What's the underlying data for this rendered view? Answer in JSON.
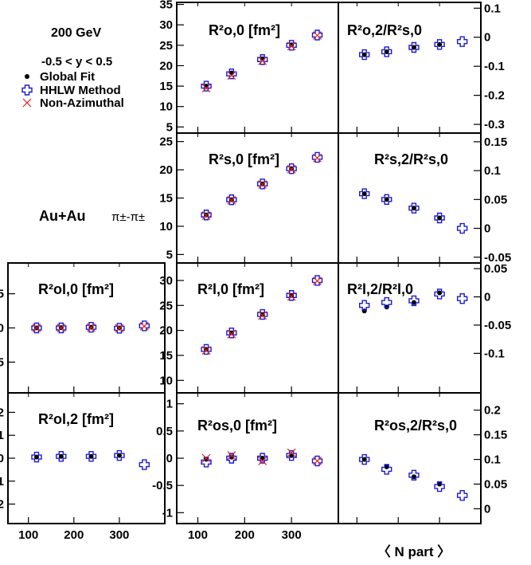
{
  "texts": {
    "energy": "200 GeV",
    "rapidity": "-0.5 < y < 0.5",
    "system": "Au+Au",
    "pair": "π±-π±",
    "x_axis_label": "〈 N part 〉"
  },
  "legend": [
    {
      "name": "Global Fit",
      "marker": "dot",
      "color": "#000000"
    },
    {
      "name": "HHLW Method",
      "marker": "open-cross",
      "color": "#1a1ad6"
    },
    {
      "name": "Non-Azimuthal",
      "marker": "x",
      "color": "#e02020"
    }
  ],
  "chart_data": [
    {
      "type": "scatter",
      "panel": "R_o0",
      "label": "R²o,0 [fm²]",
      "x": [
        118,
        172,
        238,
        300,
        355
      ],
      "xlim": [
        55,
        400
      ],
      "ylim": [
        3.5,
        35.5
      ],
      "yticks": [
        5,
        10,
        15,
        20,
        25,
        30,
        35
      ],
      "series": [
        {
          "name": "Global Fit",
          "values": [
            15.0,
            18.2,
            21.7,
            25.1,
            null
          ]
        },
        {
          "name": "HHLW Method",
          "values": [
            15.0,
            18.0,
            21.5,
            25.0,
            27.5
          ]
        },
        {
          "name": "Non-Azimuthal",
          "values": [
            14.5,
            17.6,
            21.2,
            24.8,
            27.4
          ]
        }
      ]
    },
    {
      "type": "scatter",
      "panel": "R_o2_ratio",
      "label": "R²o,2/R²s,0",
      "x": [
        118,
        172,
        238,
        300,
        355
      ],
      "xlim": [
        55,
        400
      ],
      "ylim": [
        -0.33,
        0.12
      ],
      "yticks": [
        0.1,
        0,
        -0.1,
        -0.2,
        -0.3
      ],
      "series": [
        {
          "name": "Global Fit",
          "values": [
            -0.06,
            -0.05,
            -0.035,
            -0.025,
            null
          ]
        },
        {
          "name": "HHLW Method",
          "values": [
            -0.06,
            -0.05,
            -0.035,
            -0.025,
            -0.015
          ]
        }
      ]
    },
    {
      "type": "scatter",
      "panel": "R_s0",
      "label": "R²s,0 [fm²]",
      "x": [
        118,
        172,
        238,
        300,
        355
      ],
      "xlim": [
        55,
        400
      ],
      "ylim": [
        3.5,
        26.5
      ],
      "yticks": [
        5,
        10,
        15,
        20,
        25
      ],
      "series": [
        {
          "name": "Global Fit",
          "values": [
            12.0,
            14.7,
            17.5,
            20.2,
            null
          ]
        },
        {
          "name": "HHLW Method",
          "values": [
            12.0,
            14.7,
            17.5,
            20.2,
            22.2
          ]
        },
        {
          "name": "Non-Azimuthal",
          "values": [
            11.9,
            14.6,
            17.4,
            20.1,
            22.1
          ]
        }
      ]
    },
    {
      "type": "scatter",
      "panel": "R_s2_ratio",
      "label": "R²s,2/R²s,0",
      "x": [
        118,
        172,
        238,
        300,
        355
      ],
      "xlim": [
        55,
        400
      ],
      "ylim": [
        -0.06,
        0.165
      ],
      "yticks": [
        0.15,
        0.1,
        0.05,
        0,
        -0.05
      ],
      "series": [
        {
          "name": "Global Fit",
          "values": [
            0.06,
            0.05,
            0.035,
            0.018,
            null
          ]
        },
        {
          "name": "HHLW Method",
          "values": [
            0.06,
            0.05,
            0.035,
            0.018,
            0.0
          ]
        }
      ]
    },
    {
      "type": "scatter",
      "panel": "R_ol0",
      "label": "R²ol,0 [fm²]",
      "x": [
        118,
        172,
        238,
        300,
        355
      ],
      "xlim": [
        55,
        400
      ],
      "ylim": [
        -9.5,
        9.5
      ],
      "yticks": [
        5,
        0,
        -5
      ],
      "series": [
        {
          "name": "Global Fit",
          "values": [
            0.0,
            0.05,
            0.1,
            0.0,
            null
          ]
        },
        {
          "name": "HHLW Method",
          "values": [
            0.0,
            0.0,
            0.1,
            -0.05,
            0.3
          ]
        },
        {
          "name": "Non-Azimuthal",
          "values": [
            0.0,
            0.0,
            0.05,
            -0.05,
            0.25
          ]
        }
      ]
    },
    {
      "type": "scatter",
      "panel": "R_l0",
      "label": "R²l,0 [fm²]",
      "x": [
        118,
        172,
        238,
        300,
        355
      ],
      "xlim": [
        55,
        400
      ],
      "ylim": [
        7.5,
        33.5
      ],
      "yticks": [
        10,
        15,
        20,
        25,
        30
      ],
      "series": [
        {
          "name": "Global Fit",
          "values": [
            16.2,
            19.5,
            23.2,
            27.0,
            null
          ]
        },
        {
          "name": "HHLW Method",
          "values": [
            16.2,
            19.5,
            23.2,
            27.0,
            30.0
          ]
        },
        {
          "name": "Non-Azimuthal",
          "values": [
            16.0,
            19.3,
            23.0,
            26.8,
            29.9
          ]
        }
      ]
    },
    {
      "type": "scatter",
      "panel": "R_l2_ratio",
      "label": "R²l,2/R²l,0",
      "x": [
        118,
        172,
        238,
        300,
        355
      ],
      "xlim": [
        55,
        400
      ],
      "ylim": [
        -0.17,
        0.06
      ],
      "yticks": [
        0.05,
        0,
        -0.05,
        -0.1
      ],
      "series": [
        {
          "name": "Global Fit",
          "values": [
            -0.025,
            -0.018,
            -0.01,
            0.007,
            null
          ]
        },
        {
          "name": "HHLW Method",
          "values": [
            -0.015,
            -0.01,
            -0.007,
            0.005,
            -0.003
          ]
        }
      ]
    },
    {
      "type": "scatter",
      "panel": "R_ol2",
      "label": "R²ol,2 [fm²]",
      "x": [
        118,
        172,
        238,
        300,
        355
      ],
      "xlim": [
        55,
        400
      ],
      "ylim": [
        -2.85,
        2.85
      ],
      "yticks": [
        2,
        1,
        0,
        -1,
        -2
      ],
      "series": [
        {
          "name": "Global Fit",
          "values": [
            0.05,
            0.08,
            0.08,
            0.12,
            null
          ]
        },
        {
          "name": "HHLW Method",
          "values": [
            0.05,
            0.08,
            0.08,
            0.12,
            -0.28
          ]
        }
      ]
    },
    {
      "type": "scatter",
      "panel": "R_os0",
      "label": "R²os,0 [fm²]",
      "x": [
        118,
        172,
        238,
        300,
        355
      ],
      "xlim": [
        55,
        400
      ],
      "ylim": [
        -1.2,
        1.2
      ],
      "yticks": [
        1,
        0.5,
        0,
        -0.5,
        -1
      ],
      "series": [
        {
          "name": "Global Fit",
          "values": [
            -0.02,
            0.02,
            0.0,
            0.05,
            null
          ]
        },
        {
          "name": "HHLW Method",
          "values": [
            -0.07,
            0.0,
            0.0,
            0.05,
            -0.05
          ]
        },
        {
          "name": "Non-Azimuthal",
          "values": [
            0.0,
            0.05,
            -0.05,
            0.1,
            -0.05
          ]
        }
      ]
    },
    {
      "type": "scatter",
      "panel": "R_os2_ratio",
      "label": "R²os,2/R²s,0",
      "x": [
        118,
        172,
        238,
        300,
        355
      ],
      "xlim": [
        55,
        400
      ],
      "ylim": [
        -0.03,
        0.235
      ],
      "yticks": [
        0.2,
        0.15,
        0.1,
        0.05,
        0
      ],
      "series": [
        {
          "name": "Global Fit",
          "values": [
            0.1,
            0.085,
            0.065,
            0.05,
            null
          ]
        },
        {
          "name": "HHLW Method",
          "values": [
            0.1,
            0.08,
            0.068,
            0.045,
            0.027
          ]
        }
      ]
    }
  ],
  "x_ticks": [
    100,
    200,
    300
  ]
}
